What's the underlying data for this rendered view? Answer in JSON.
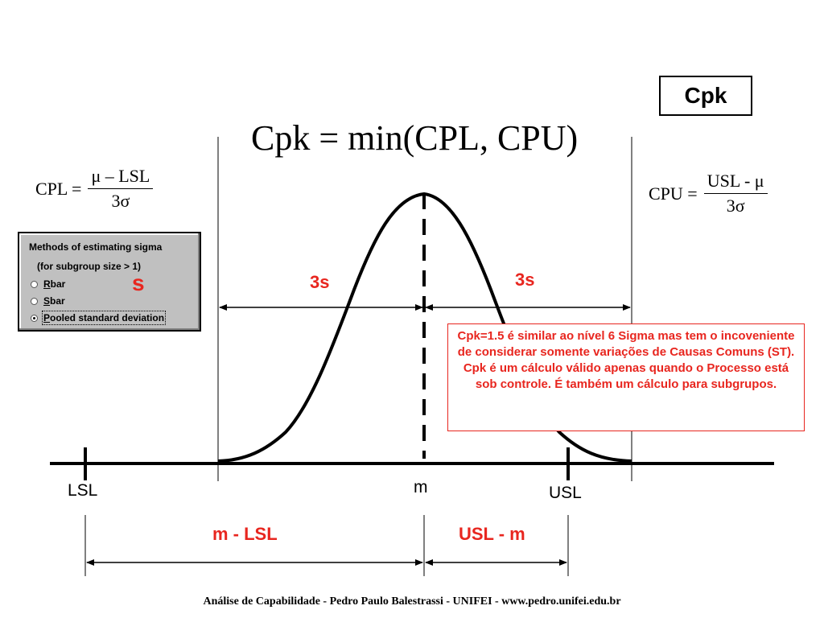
{
  "title": "Cpk",
  "formula": {
    "main": "Cpk = min(CPL, CPU)",
    "cpl": {
      "lhs": "CPL =",
      "num": "μ – LSL",
      "den": "3σ"
    },
    "cpu": {
      "lhs": "CPU =",
      "num": "USL - μ",
      "den": "3σ"
    }
  },
  "dialog": {
    "title": "Methods of estimating sigma",
    "subtitle": "(for subgroup size > 1)",
    "options": [
      {
        "key": "R",
        "rest": "bar",
        "selected": false
      },
      {
        "key": "S",
        "rest": "bar",
        "selected": false
      },
      {
        "key": "P",
        "rest": "ooled standard deviation",
        "selected": true
      }
    ]
  },
  "annotations": {
    "s_symbol": "s",
    "left_span": "3s",
    "right_span": "3s",
    "lower_left_span": "m - LSL",
    "lower_right_span": "USL - m"
  },
  "axis": {
    "lsl": "LSL",
    "mean": "m",
    "usl": "USL"
  },
  "note": "Cpk=1.5 é similar ao nível 6 Sigma mas tem o incoveniente de considerar somente variações de Causas Comuns (ST). Cpk é um cálculo válido apenas quando o Processo está sob controle.  É também um cálculo para  subgrupos.",
  "footer": "Análise de Capabilidade - Pedro Paulo Balestrassi - UNIFEI -  www.pedro.unifei.edu.br",
  "colors": {
    "accent": "#e8261f",
    "ink": "#000000",
    "dialog_bg": "#c0c0c0"
  }
}
